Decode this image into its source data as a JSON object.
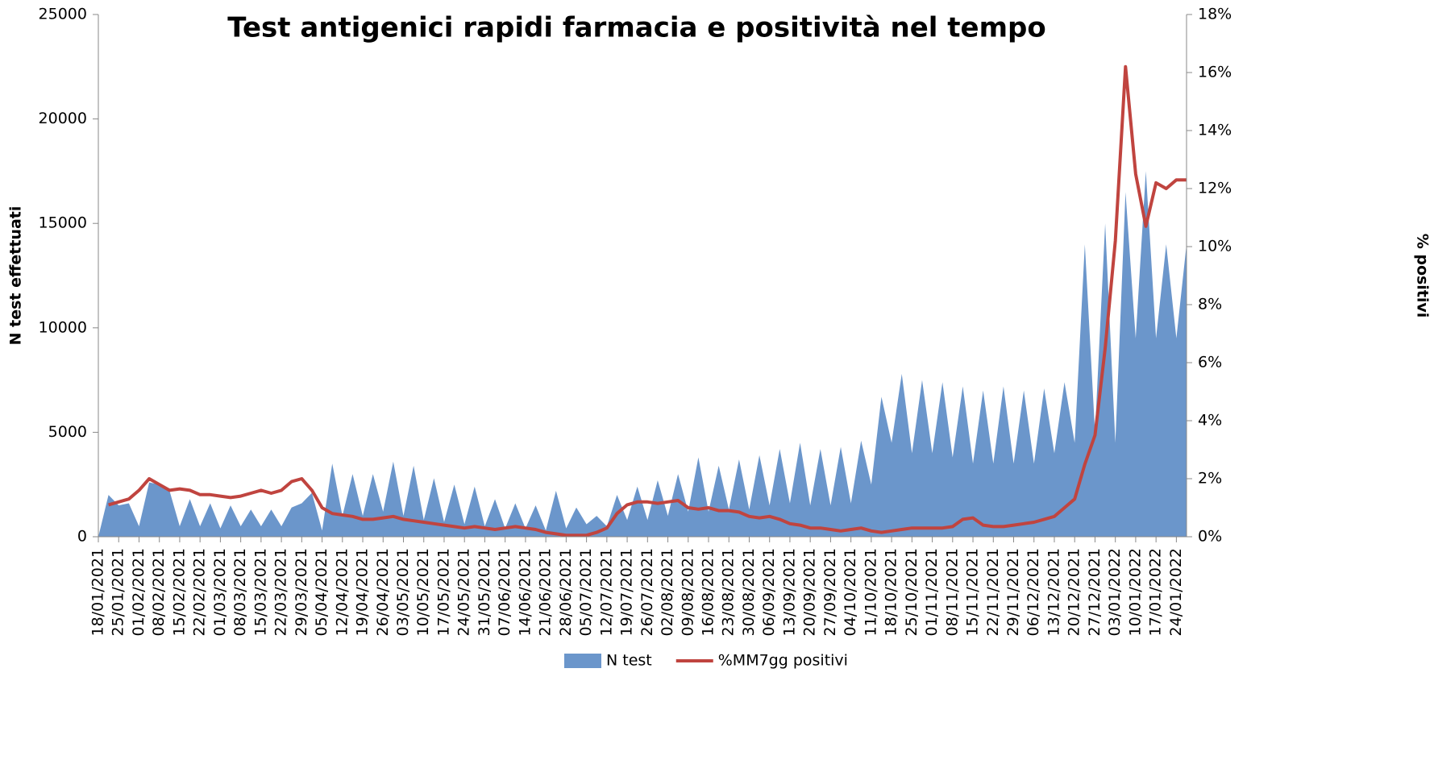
{
  "chart_data": {
    "type": "area",
    "title": "Test antigenici rapidi farmacia e positività nel tempo",
    "y_label": "N test effettuati",
    "y2_label": "% positivi",
    "categories": [
      "18/01/2021",
      null,
      "25/01/2021",
      null,
      "01/02/2021",
      null,
      "08/02/2021",
      null,
      "15/02/2021",
      null,
      "22/02/2021",
      null,
      "01/03/2021",
      null,
      "08/03/2021",
      null,
      "15/03/2021",
      null,
      "22/03/2021",
      null,
      "29/03/2021",
      null,
      "05/04/2021",
      null,
      "12/04/2021",
      null,
      "19/04/2021",
      null,
      "26/04/2021",
      null,
      "03/05/2021",
      null,
      "10/05/2021",
      null,
      "17/05/2021",
      null,
      "24/05/2021",
      null,
      "31/05/2021",
      null,
      "07/06/2021",
      null,
      "14/06/2021",
      null,
      "21/06/2021",
      null,
      "28/06/2021",
      null,
      "05/07/2021",
      null,
      "12/07/2021",
      null,
      "19/07/2021",
      null,
      "26/07/2021",
      null,
      "02/08/2021",
      null,
      "09/08/2021",
      null,
      "16/08/2021",
      null,
      "23/08/2021",
      null,
      "30/08/2021",
      null,
      "06/09/2021",
      null,
      "13/09/2021",
      null,
      "20/09/2021",
      null,
      "27/09/2021",
      null,
      "04/10/2021",
      null,
      "11/10/2021",
      null,
      "18/10/2021",
      null,
      "25/10/2021",
      null,
      "01/11/2021",
      null,
      "08/11/2021",
      null,
      "15/11/2021",
      null,
      "22/11/2021",
      null,
      "29/11/2021",
      null,
      "06/12/2021",
      null,
      "13/12/2021",
      null,
      "20/12/2021",
      null,
      "27/12/2021",
      null,
      "03/01/2022",
      null,
      "10/01/2022",
      null,
      "17/01/2022",
      null,
      "24/01/2022",
      null
    ],
    "series": [
      {
        "name": "N test",
        "type": "area",
        "color": "#6b96cb",
        "values": [
          0,
          2000,
          1500,
          1600,
          500,
          2600,
          2500,
          2200,
          500,
          1800,
          500,
          1600,
          400,
          1500,
          500,
          1300,
          500,
          1300,
          500,
          1400,
          1600,
          2100,
          300,
          3500,
          1000,
          3000,
          1000,
          3000,
          1200,
          3600,
          1000,
          3400,
          800,
          2800,
          700,
          2500,
          600,
          2400,
          500,
          1800,
          400,
          1600,
          400,
          1500,
          300,
          2200,
          400,
          1400,
          600,
          1000,
          500,
          2000,
          800,
          2400,
          800,
          2700,
          1000,
          3000,
          1200,
          3800,
          1200,
          3400,
          1300,
          3700,
          1300,
          3900,
          1500,
          4200,
          1600,
          4500,
          1500,
          4200,
          1500,
          4300,
          1600,
          4600,
          2500,
          6700,
          4500,
          7800,
          4000,
          7500,
          4000,
          7400,
          3800,
          7200,
          3500,
          7000,
          3500,
          7200,
          3500,
          7000,
          3500,
          7100,
          4000,
          7400,
          4500,
          14000,
          5000,
          15000,
          4500,
          16500,
          9500,
          17500,
          9500,
          14000,
          9500,
          14000
        ]
      },
      {
        "name": "%MM7gg positivi",
        "type": "line",
        "axis": "y2",
        "color": "#c0443f",
        "values": [
          null,
          1.1,
          1.2,
          1.3,
          1.6,
          2.0,
          1.8,
          1.6,
          1.65,
          1.6,
          1.45,
          1.45,
          1.4,
          1.35,
          1.4,
          1.5,
          1.6,
          1.5,
          1.6,
          1.9,
          2.0,
          1.6,
          1.0,
          0.8,
          0.75,
          0.7,
          0.6,
          0.6,
          0.65,
          0.7,
          0.6,
          0.55,
          0.5,
          0.45,
          0.4,
          0.35,
          0.3,
          0.35,
          0.3,
          0.25,
          0.3,
          0.35,
          0.3,
          0.25,
          0.15,
          0.1,
          0.05,
          0.05,
          0.05,
          0.15,
          0.3,
          0.8,
          1.1,
          1.2,
          1.2,
          1.15,
          1.2,
          1.25,
          1.0,
          0.95,
          1.0,
          0.9,
          0.9,
          0.85,
          0.7,
          0.65,
          0.7,
          0.6,
          0.45,
          0.4,
          0.3,
          0.3,
          0.25,
          0.2,
          0.25,
          0.3,
          0.2,
          0.15,
          0.2,
          0.25,
          0.3,
          0.3,
          0.3,
          0.3,
          0.35,
          0.6,
          0.65,
          0.4,
          0.35,
          0.35,
          0.4,
          0.45,
          0.5,
          0.6,
          0.7,
          1.0,
          1.3,
          2.5,
          3.5,
          6.5,
          10.2,
          16.2,
          12.5,
          10.7,
          12.2,
          12.0,
          12.3,
          12.3
        ]
      }
    ],
    "ylim": [
      0,
      25000
    ],
    "yticks": [
      0,
      5000,
      10000,
      15000,
      20000,
      25000
    ],
    "y2lim": [
      0,
      18
    ],
    "y2ticks": [
      {
        "value": 0,
        "label": "0%"
      },
      {
        "value": 2,
        "label": "2%"
      },
      {
        "value": 4,
        "label": "4%"
      },
      {
        "value": 6,
        "label": "6%"
      },
      {
        "value": 8,
        "label": "8%"
      },
      {
        "value": 10,
        "label": "10%"
      },
      {
        "value": 12,
        "label": "12%"
      },
      {
        "value": 14,
        "label": "14%"
      },
      {
        "value": 16,
        "label": "16%"
      },
      {
        "value": 18,
        "label": "18%"
      }
    ],
    "grid": false,
    "legend": "bottom"
  }
}
